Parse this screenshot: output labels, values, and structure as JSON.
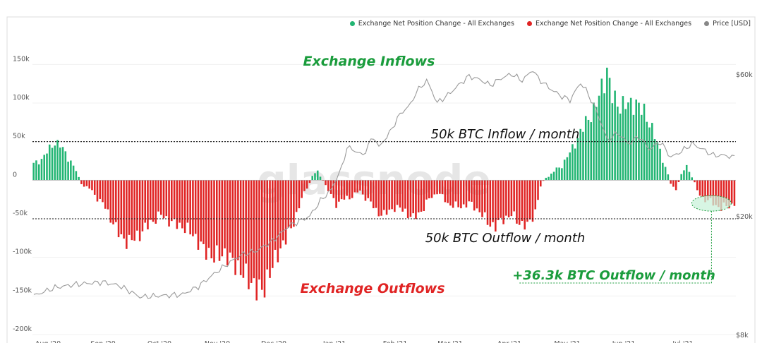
{
  "chart_data": {
    "type": "bar",
    "title": "",
    "legend": [
      {
        "label": "Exchange Net Position Change - All Exchanges",
        "color": "#22b573"
      },
      {
        "label": "Exchange Net Position Change - All Exchanges",
        "color": "#e02424"
      },
      {
        "label": "Price [USD]",
        "color": "#888888"
      }
    ],
    "y_left": {
      "ticks": [
        "150k",
        "100k",
        "50k",
        "0",
        "-50k",
        "-100k",
        "-150k",
        "-200k"
      ],
      "tick_values": [
        150000,
        100000,
        50000,
        0,
        -50000,
        -100000,
        -150000,
        -200000
      ],
      "range": [
        -200000,
        175000
      ]
    },
    "y_right": {
      "ticks": [
        "$60k",
        "$20k",
        "$8k"
      ],
      "tick_values": [
        60000,
        20000,
        8000
      ],
      "scale": "log",
      "range": [
        8000,
        75000
      ]
    },
    "x_tick_labels": [
      "Aug '20",
      "Sep '20",
      "Oct '20",
      "Nov '20",
      "Dec '20",
      "Jan '21",
      "Feb '21",
      "Mar '21",
      "Apr '21",
      "May '21",
      "Jun '21",
      "Jul '21"
    ],
    "reference_lines": [
      {
        "value": 50000,
        "label": "50k BTC Inflow / month"
      },
      {
        "value": -50000,
        "label": "50k BTC Outflow / month"
      }
    ],
    "annotations": {
      "inflows": "Exchange Inflows",
      "outflows": "Exchange Outflows",
      "latest": "+36.3k BTC Outflow / month",
      "watermark": "glassnode"
    },
    "net_position_keypoints": [
      [
        0,
        20000
      ],
      [
        3,
        28000
      ],
      [
        6,
        40000
      ],
      [
        8,
        50000
      ],
      [
        10,
        45000
      ],
      [
        14,
        25000
      ],
      [
        17,
        3000
      ],
      [
        18,
        -3000
      ],
      [
        22,
        -15000
      ],
      [
        26,
        -30000
      ],
      [
        30,
        -55000
      ],
      [
        33,
        -75000
      ],
      [
        36,
        -80000
      ],
      [
        40,
        -70000
      ],
      [
        44,
        -55000
      ],
      [
        48,
        -45000
      ],
      [
        52,
        -55000
      ],
      [
        56,
        -60000
      ],
      [
        60,
        -70000
      ],
      [
        64,
        -90000
      ],
      [
        68,
        -100000
      ],
      [
        72,
        -95000
      ],
      [
        76,
        -110000
      ],
      [
        80,
        -125000
      ],
      [
        84,
        -140000
      ],
      [
        86,
        -145000
      ],
      [
        89,
        -120000
      ],
      [
        92,
        -95000
      ],
      [
        96,
        -70000
      ],
      [
        99,
        -45000
      ],
      [
        101,
        -25000
      ],
      [
        103,
        -8000
      ],
      [
        105,
        5000
      ],
      [
        107,
        10000
      ],
      [
        109,
        2000
      ],
      [
        111,
        -15000
      ],
      [
        114,
        -30000
      ],
      [
        117,
        -25000
      ],
      [
        120,
        -20000
      ],
      [
        123,
        -15000
      ],
      [
        126,
        -25000
      ],
      [
        129,
        -40000
      ],
      [
        132,
        -45000
      ],
      [
        136,
        -35000
      ],
      [
        140,
        -40000
      ],
      [
        143,
        -50000
      ],
      [
        146,
        -40000
      ],
      [
        149,
        -25000
      ],
      [
        152,
        -15000
      ],
      [
        156,
        -30000
      ],
      [
        160,
        -35000
      ],
      [
        164,
        -30000
      ],
      [
        168,
        -40000
      ],
      [
        171,
        -55000
      ],
      [
        174,
        -60000
      ],
      [
        177,
        -50000
      ],
      [
        180,
        -45000
      ],
      [
        183,
        -55000
      ],
      [
        186,
        -60000
      ],
      [
        189,
        -40000
      ],
      [
        191,
        -10000
      ],
      [
        193,
        5000
      ],
      [
        196,
        10000
      ],
      [
        199,
        20000
      ],
      [
        202,
        35000
      ],
      [
        205,
        55000
      ],
      [
        208,
        75000
      ],
      [
        211,
        90000
      ],
      [
        214,
        120000
      ],
      [
        216,
        140000
      ],
      [
        218,
        110000
      ],
      [
        221,
        95000
      ],
      [
        224,
        100000
      ],
      [
        227,
        98000
      ],
      [
        230,
        90000
      ],
      [
        233,
        65000
      ],
      [
        236,
        40000
      ],
      [
        238,
        15000
      ],
      [
        240,
        -5000
      ],
      [
        242,
        -10000
      ],
      [
        244,
        5000
      ],
      [
        246,
        20000
      ],
      [
        248,
        5000
      ],
      [
        250,
        -15000
      ],
      [
        253,
        -25000
      ],
      [
        256,
        -30000
      ],
      [
        259,
        -36000
      ],
      [
        262,
        -33000
      ],
      [
        264,
        -30000
      ]
    ],
    "net_position_count": 265,
    "price_points": [
      [
        0,
        10800
      ],
      [
        8,
        11500
      ],
      [
        16,
        11800
      ],
      [
        26,
        12000
      ],
      [
        32,
        11700
      ],
      [
        40,
        10700
      ],
      [
        48,
        10800
      ],
      [
        56,
        10900
      ],
      [
        62,
        11600
      ],
      [
        70,
        13200
      ],
      [
        78,
        14800
      ],
      [
        84,
        15300
      ],
      [
        90,
        16500
      ],
      [
        96,
        18500
      ],
      [
        100,
        19200
      ],
      [
        104,
        20000
      ],
      [
        108,
        22500
      ],
      [
        112,
        24500
      ],
      [
        116,
        29000
      ],
      [
        118,
        34000
      ],
      [
        120,
        33500
      ],
      [
        124,
        32000
      ],
      [
        128,
        37000
      ],
      [
        130,
        34000
      ],
      [
        134,
        38000
      ],
      [
        138,
        44000
      ],
      [
        142,
        47500
      ],
      [
        144,
        52000
      ],
      [
        148,
        57000
      ],
      [
        152,
        48000
      ],
      [
        156,
        51000
      ],
      [
        160,
        55000
      ],
      [
        164,
        59000
      ],
      [
        168,
        57500
      ],
      [
        172,
        55000
      ],
      [
        176,
        58000
      ],
      [
        180,
        60000
      ],
      [
        184,
        57000
      ],
      [
        188,
        62000
      ],
      [
        190,
        58000
      ],
      [
        194,
        54000
      ],
      [
        198,
        51000
      ],
      [
        202,
        49000
      ],
      [
        206,
        56000
      ],
      [
        208,
        53000
      ],
      [
        212,
        45000
      ],
      [
        216,
        36000
      ],
      [
        220,
        38000
      ],
      [
        224,
        35000
      ],
      [
        228,
        37000
      ],
      [
        232,
        33500
      ],
      [
        236,
        35500
      ],
      [
        240,
        31500
      ],
      [
        244,
        33000
      ],
      [
        248,
        35000
      ],
      [
        252,
        33500
      ],
      [
        256,
        32000
      ],
      [
        260,
        32000
      ],
      [
        264,
        31500
      ]
    ]
  }
}
